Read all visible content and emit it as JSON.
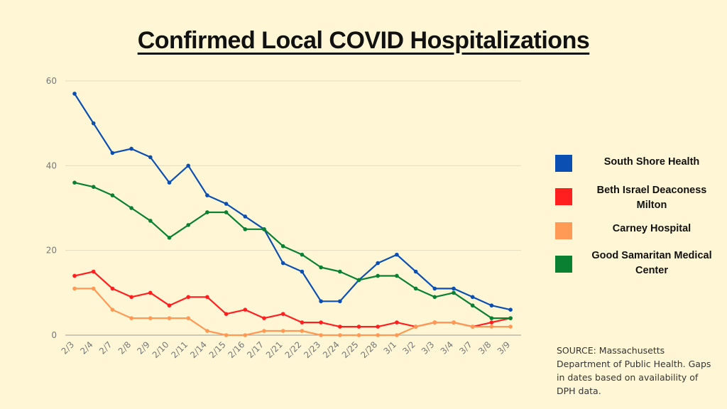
{
  "title": "Confirmed Local COVID Hospitalizations",
  "source_note": "SOURCE: Massachusetts Department of Public Health. Gaps in dates based on availability of DPH data.",
  "chart_data": {
    "type": "line",
    "title": "Confirmed Local COVID Hospitalizations",
    "xlabel": "",
    "ylabel": "",
    "ylim": [
      0,
      60
    ],
    "yticks": [
      0,
      20,
      40,
      60
    ],
    "grid": true,
    "legend_position": "right",
    "categories": [
      "2/3",
      "2/4",
      "2/7",
      "2/8",
      "2/9",
      "2/10",
      "2/11",
      "2/14",
      "2/15",
      "2/16",
      "2/17",
      "2/21",
      "2/22",
      "2/23",
      "2/24",
      "2/25",
      "2/28",
      "3/1",
      "3/2",
      "3/3",
      "3/4",
      "3/7",
      "3/8",
      "3/9"
    ],
    "series": [
      {
        "name": "South Shore Health",
        "color": "#0b4fb3",
        "values": [
          57,
          50,
          43,
          44,
          42,
          36,
          40,
          33,
          31,
          28,
          25,
          17,
          15,
          8,
          8,
          13,
          17,
          19,
          15,
          11,
          11,
          9,
          7,
          6
        ]
      },
      {
        "name": "Beth Israel Deaconess Milton",
        "color": "#ff1f1f",
        "values": [
          14,
          15,
          11,
          9,
          10,
          7,
          9,
          9,
          5,
          6,
          4,
          5,
          3,
          3,
          2,
          2,
          2,
          3,
          2,
          3,
          3,
          2,
          3,
          4
        ]
      },
      {
        "name": "Carney Hospital",
        "color": "#ff9955",
        "values": [
          11,
          11,
          6,
          4,
          4,
          4,
          4,
          1,
          0,
          0,
          1,
          1,
          1,
          0,
          0,
          0,
          0,
          0,
          2,
          3,
          3,
          2,
          2,
          2
        ]
      },
      {
        "name": "Good Samaritan Medical Center",
        "color": "#0a8032",
        "values": [
          36,
          35,
          33,
          30,
          27,
          23,
          26,
          29,
          29,
          25,
          25,
          21,
          19,
          16,
          15,
          13,
          14,
          14,
          11,
          9,
          10,
          7,
          4,
          4
        ]
      }
    ]
  }
}
